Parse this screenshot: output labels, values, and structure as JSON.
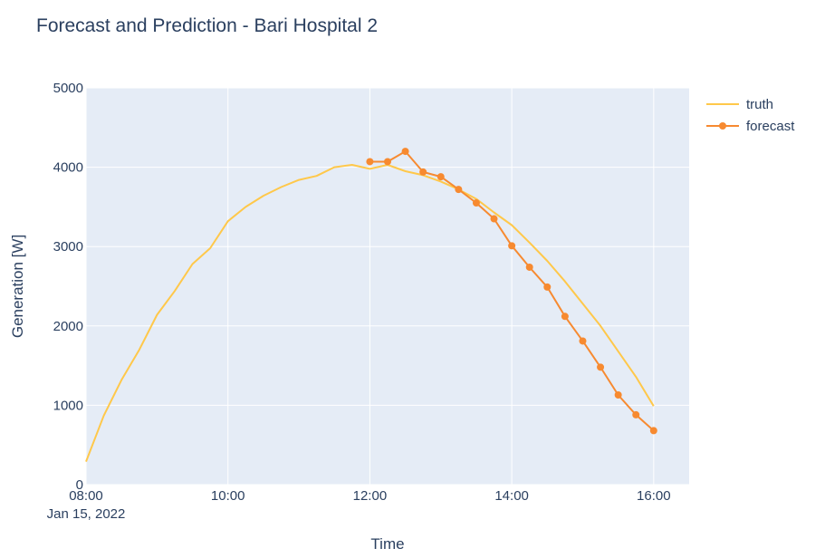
{
  "chart_data": {
    "type": "line",
    "title": "Forecast and Prediction - Bari Hospital 2",
    "xlabel": "Time",
    "ylabel": "Generation [W]",
    "x_date_label": "Jan 15, 2022",
    "xlim": [
      "08:00",
      "16:30"
    ],
    "ylim": [
      0,
      5000
    ],
    "x_ticks": [
      "08:00",
      "10:00",
      "12:00",
      "14:00",
      "16:00"
    ],
    "y_ticks": [
      0,
      1000,
      2000,
      3000,
      4000,
      5000
    ],
    "y_tick_labels": [
      "0",
      "1000",
      "2000",
      "3000",
      "4000",
      "5000"
    ],
    "grid": true,
    "legend_position": "top-right",
    "colors": {
      "plot_bg": "#e5ecf6",
      "grid": "#ffffff",
      "truth": "#ffc84a",
      "forecast": "#f78a30"
    },
    "series": [
      {
        "name": "truth",
        "markers": false,
        "x": [
          "08:00",
          "08:15",
          "08:30",
          "08:45",
          "09:00",
          "09:15",
          "09:30",
          "09:45",
          "10:00",
          "10:15",
          "10:30",
          "10:45",
          "11:00",
          "11:15",
          "11:30",
          "11:45",
          "12:00",
          "12:15",
          "12:30",
          "12:45",
          "13:00",
          "13:15",
          "13:30",
          "13:45",
          "14:00",
          "14:15",
          "14:30",
          "14:45",
          "15:00",
          "15:15",
          "15:30",
          "15:45",
          "16:00"
        ],
        "y": [
          290,
          870,
          1320,
          1700,
          2140,
          2440,
          2780,
          2980,
          3320,
          3500,
          3640,
          3750,
          3840,
          3890,
          4000,
          4030,
          3980,
          4030,
          3950,
          3900,
          3820,
          3720,
          3600,
          3430,
          3270,
          3050,
          2820,
          2560,
          2280,
          2000,
          1680,
          1360,
          990
        ]
      },
      {
        "name": "forecast",
        "markers": true,
        "x": [
          "12:00",
          "12:15",
          "12:30",
          "12:45",
          "13:00",
          "13:15",
          "13:30",
          "13:45",
          "14:00",
          "14:15",
          "14:30",
          "14:45",
          "15:00",
          "15:15",
          "15:30",
          "15:45",
          "16:00"
        ],
        "y": [
          4070,
          4070,
          4200,
          3940,
          3880,
          3720,
          3550,
          3350,
          3010,
          2740,
          2490,
          2120,
          1810,
          1480,
          1130,
          880,
          680
        ]
      }
    ]
  }
}
